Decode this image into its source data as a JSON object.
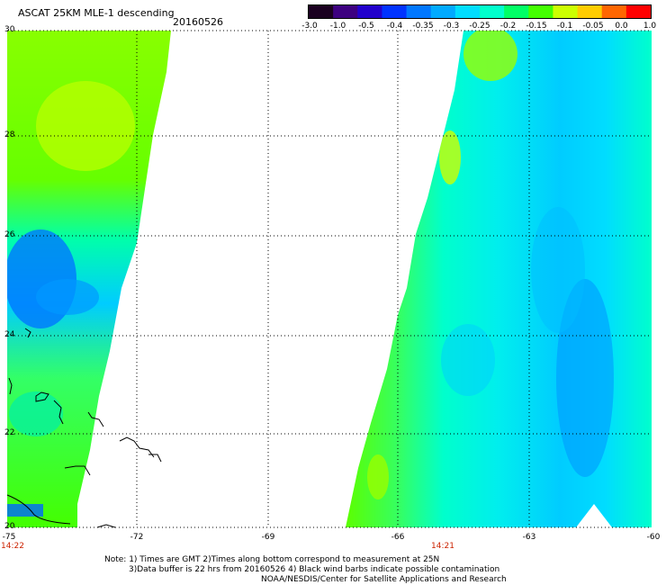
{
  "title": "ASCAT 25KM MLE-1 descending",
  "date": "20160526",
  "colorbar": {
    "labels": [
      "-3.0",
      "-1.0",
      "-0.5",
      "-0.4",
      "-0.35",
      "-0.3",
      "-0.25",
      "-0.2",
      "-0.15",
      "-0.1",
      "-0.05",
      "0.0",
      "1.0"
    ],
    "colors": [
      "#1a0020",
      "#3d0080",
      "#2200cc",
      "#0033ff",
      "#0077ff",
      "#00aaff",
      "#00ddff",
      "#00ffcc",
      "#00ff66",
      "#44ff00",
      "#ccff00",
      "#ffcc00",
      "#ff6600",
      "#ff0000"
    ]
  },
  "axes": {
    "lat_labels": [
      "30",
      "28",
      "26",
      "24",
      "22",
      "20"
    ],
    "lon_labels": [
      "-75",
      "-72",
      "-69",
      "-66",
      "-63",
      "-60"
    ],
    "lat_range": [
      20,
      30
    ],
    "lon_range": [
      -75,
      -60
    ]
  },
  "times": [
    {
      "label": "14:22",
      "lon": -75
    },
    {
      "label": "14:21",
      "lon": -64.8
    }
  ],
  "notes": [
    "Note: 1) Times are GMT 2)Times along bottom correspond to measurement at 25N",
    "3)Data buffer is 22 hrs from 20160526 4) Black wind barbs indicate possible contamination",
    "NOAA/NESDIS/Center for Satellite Applications and Research"
  ]
}
